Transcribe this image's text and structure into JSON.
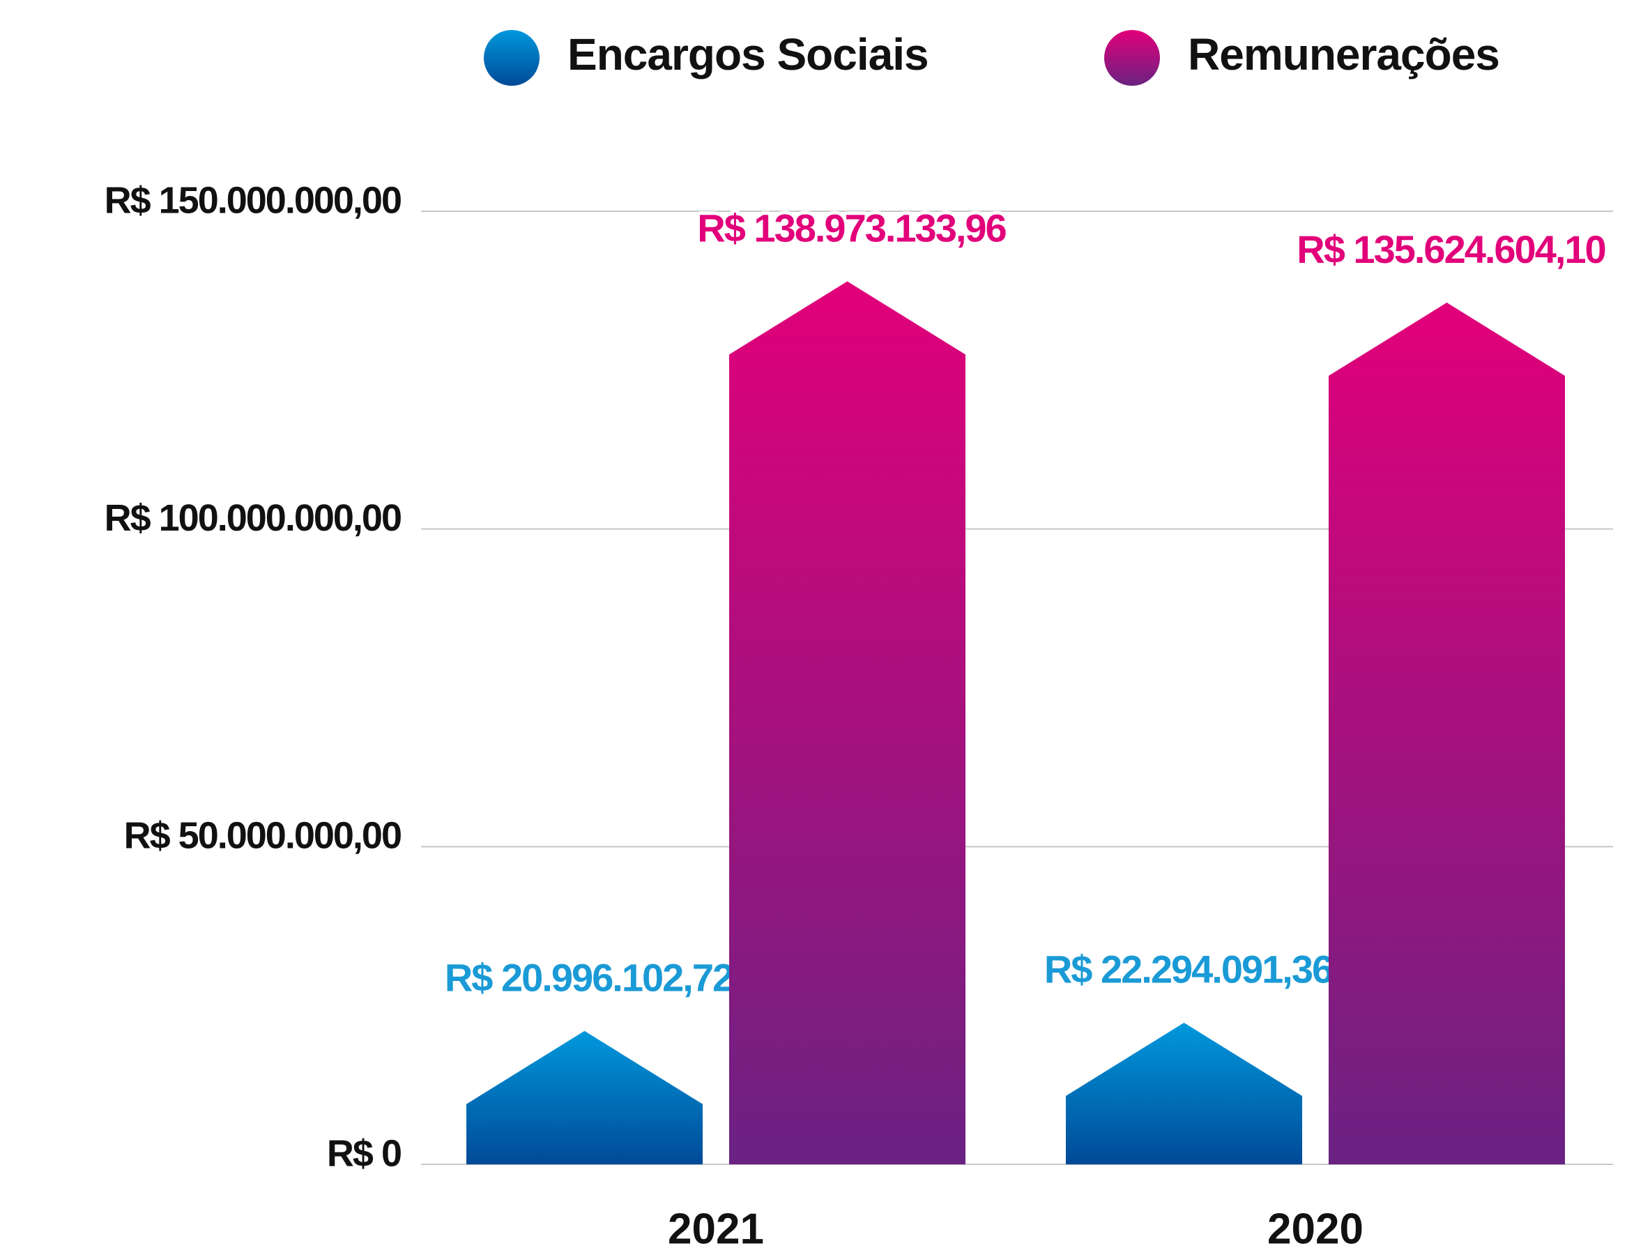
{
  "chart_data": {
    "type": "bar",
    "categories": [
      "2021",
      "2020"
    ],
    "series": [
      {
        "name": "Encargos Sociais",
        "color": "#0098dc",
        "color_end": "#004a97",
        "values": [
          20996102.72,
          22294091.36
        ],
        "value_labels": [
          "R$ 20.996.102,72",
          "R$ 22.294.091,36"
        ],
        "label_color": "#1a9ad6"
      },
      {
        "name": "Remunerações",
        "color": "#e2007a",
        "color_end": "#6a2282",
        "values": [
          138973133.96,
          135624604.1
        ],
        "value_labels": [
          "R$ 138.973.133,96",
          "R$ 135.624.604,10"
        ],
        "label_color": "#e2007a"
      }
    ],
    "ylim": [
      0,
      150000000
    ],
    "yticks": [
      {
        "value": 0,
        "label": "R$ 0"
      },
      {
        "value": 50000000,
        "label": "R$ 50.000.000,00"
      },
      {
        "value": 100000000,
        "label": "R$ 100.000.000,00"
      },
      {
        "value": 150000000,
        "label": "R$ 150.000.000,00"
      }
    ],
    "grid": true
  }
}
